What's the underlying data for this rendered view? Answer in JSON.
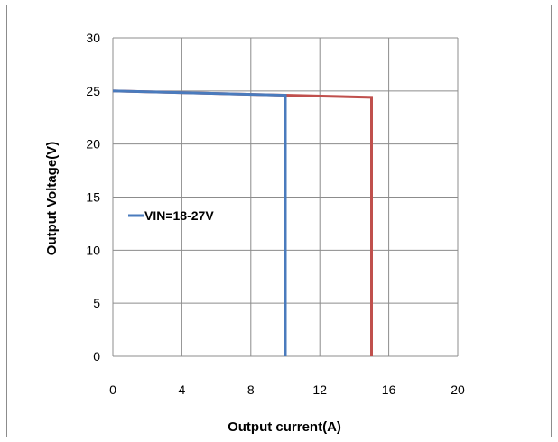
{
  "chart_data": {
    "type": "line",
    "title": "",
    "xlabel": "Output current(A)",
    "ylabel": "Output Voltage(V)",
    "xlim": [
      0,
      20
    ],
    "ylim": [
      0,
      30
    ],
    "x_ticks": [
      0,
      4,
      8,
      12,
      16,
      20
    ],
    "y_ticks": [
      0,
      5,
      10,
      15,
      20,
      25,
      30
    ],
    "grid": true,
    "legend_position": "left-middle",
    "series": [
      {
        "name": "VIN=18-27V",
        "color": "#4a7bbd",
        "x": [
          0,
          10,
          10
        ],
        "y": [
          25.0,
          24.6,
          0
        ]
      },
      {
        "name": "",
        "color": "#c0504d",
        "x": [
          0,
          15,
          15
        ],
        "y": [
          25.0,
          24.4,
          0
        ]
      }
    ]
  }
}
